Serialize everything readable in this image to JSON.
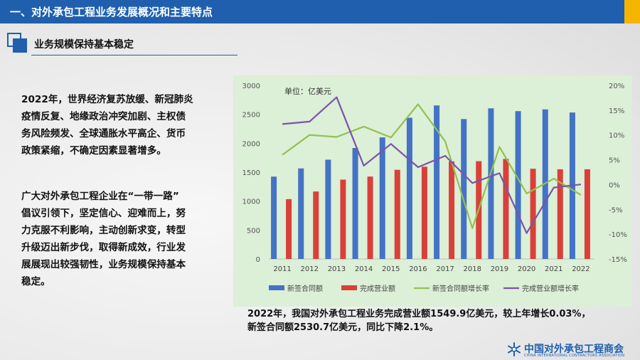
{
  "header": {
    "title": "一、对外承包工程业务发展概况和主要特点"
  },
  "section": {
    "title": "业务规模保持基本稳定"
  },
  "body": {
    "para1_lines": [
      "2022年，世界经济复苏放缓、新冠肺炎",
      "疫情反复、地缘政治冲突加剧、主权债",
      "务风险频发、全球通胀水平高企、货币",
      "政策紧缩，不确定因素显著增多。"
    ],
    "para2_lines": [
      "广大对外承包工程企业在“一带一路”",
      "倡议引领下，坚定信心、迎难而上，努",
      "力克服不利影响，主动创新求变，转型",
      "升级迈出新步伐，取得新成效，行业发",
      "展展现出较强韧性，业务规模保持基本",
      "稳定。"
    ]
  },
  "caption": {
    "line1": "2022年，我国对外承包工程业务完成营业额1549.9亿美元，较上年增长0.03%，",
    "line2": "新签合同额2530.7亿美元，同比下降2.1%。"
  },
  "logo": {
    "cn": "中国对外承包工程商会",
    "en": "CHINA INTERNATIONAL CONTRACTORS ASSOCIATION"
  },
  "chart_data": {
    "type": "bar",
    "unit_label": "单位：亿美元",
    "categories": [
      "2011",
      "2012",
      "2013",
      "2014",
      "2015",
      "2016",
      "2017",
      "2018",
      "2019",
      "2020",
      "2021",
      "2022"
    ],
    "ylim": [
      0,
      3000
    ],
    "y_ticks": [
      "0",
      "500",
      "1000",
      "1500",
      "2000",
      "2500",
      "3000"
    ],
    "y2lim": [
      -15,
      20
    ],
    "y2_ticks": [
      "-15%",
      "-10%",
      "-5%",
      "0%",
      "5%",
      "10%",
      "15%",
      "20%"
    ],
    "series": [
      {
        "name": "新签合同额",
        "kind": "bar",
        "axis": "left",
        "color": "#4472c4",
        "values": [
          1423,
          1565,
          1716,
          1918,
          2101,
          2440,
          2653,
          2418,
          2603,
          2555,
          2585,
          2531
        ]
      },
      {
        "name": "完成营业额",
        "kind": "bar",
        "axis": "left",
        "color": "#d9403a",
        "values": [
          1034,
          1166,
          1371,
          1424,
          1541,
          1594,
          1686,
          1690,
          1729,
          1559,
          1550,
          1550
        ]
      },
      {
        "name": "新签合同额增长率",
        "kind": "line",
        "axis": "right",
        "color": "#92c24e",
        "values": [
          6,
          10,
          9.6,
          11.7,
          9.5,
          16.2,
          8.7,
          -8.8,
          7.6,
          -1.8,
          1.2,
          -2.1
        ]
      },
      {
        "name": "完成营业额增长率",
        "kind": "line",
        "axis": "right",
        "color": "#7b54a8",
        "values": [
          12.2,
          12.7,
          17.6,
          3.8,
          8.2,
          3.5,
          5.8,
          0.3,
          2.3,
          -9.8,
          -0.6,
          0.03
        ]
      }
    ],
    "legend_position": "bottom",
    "grid": false
  }
}
